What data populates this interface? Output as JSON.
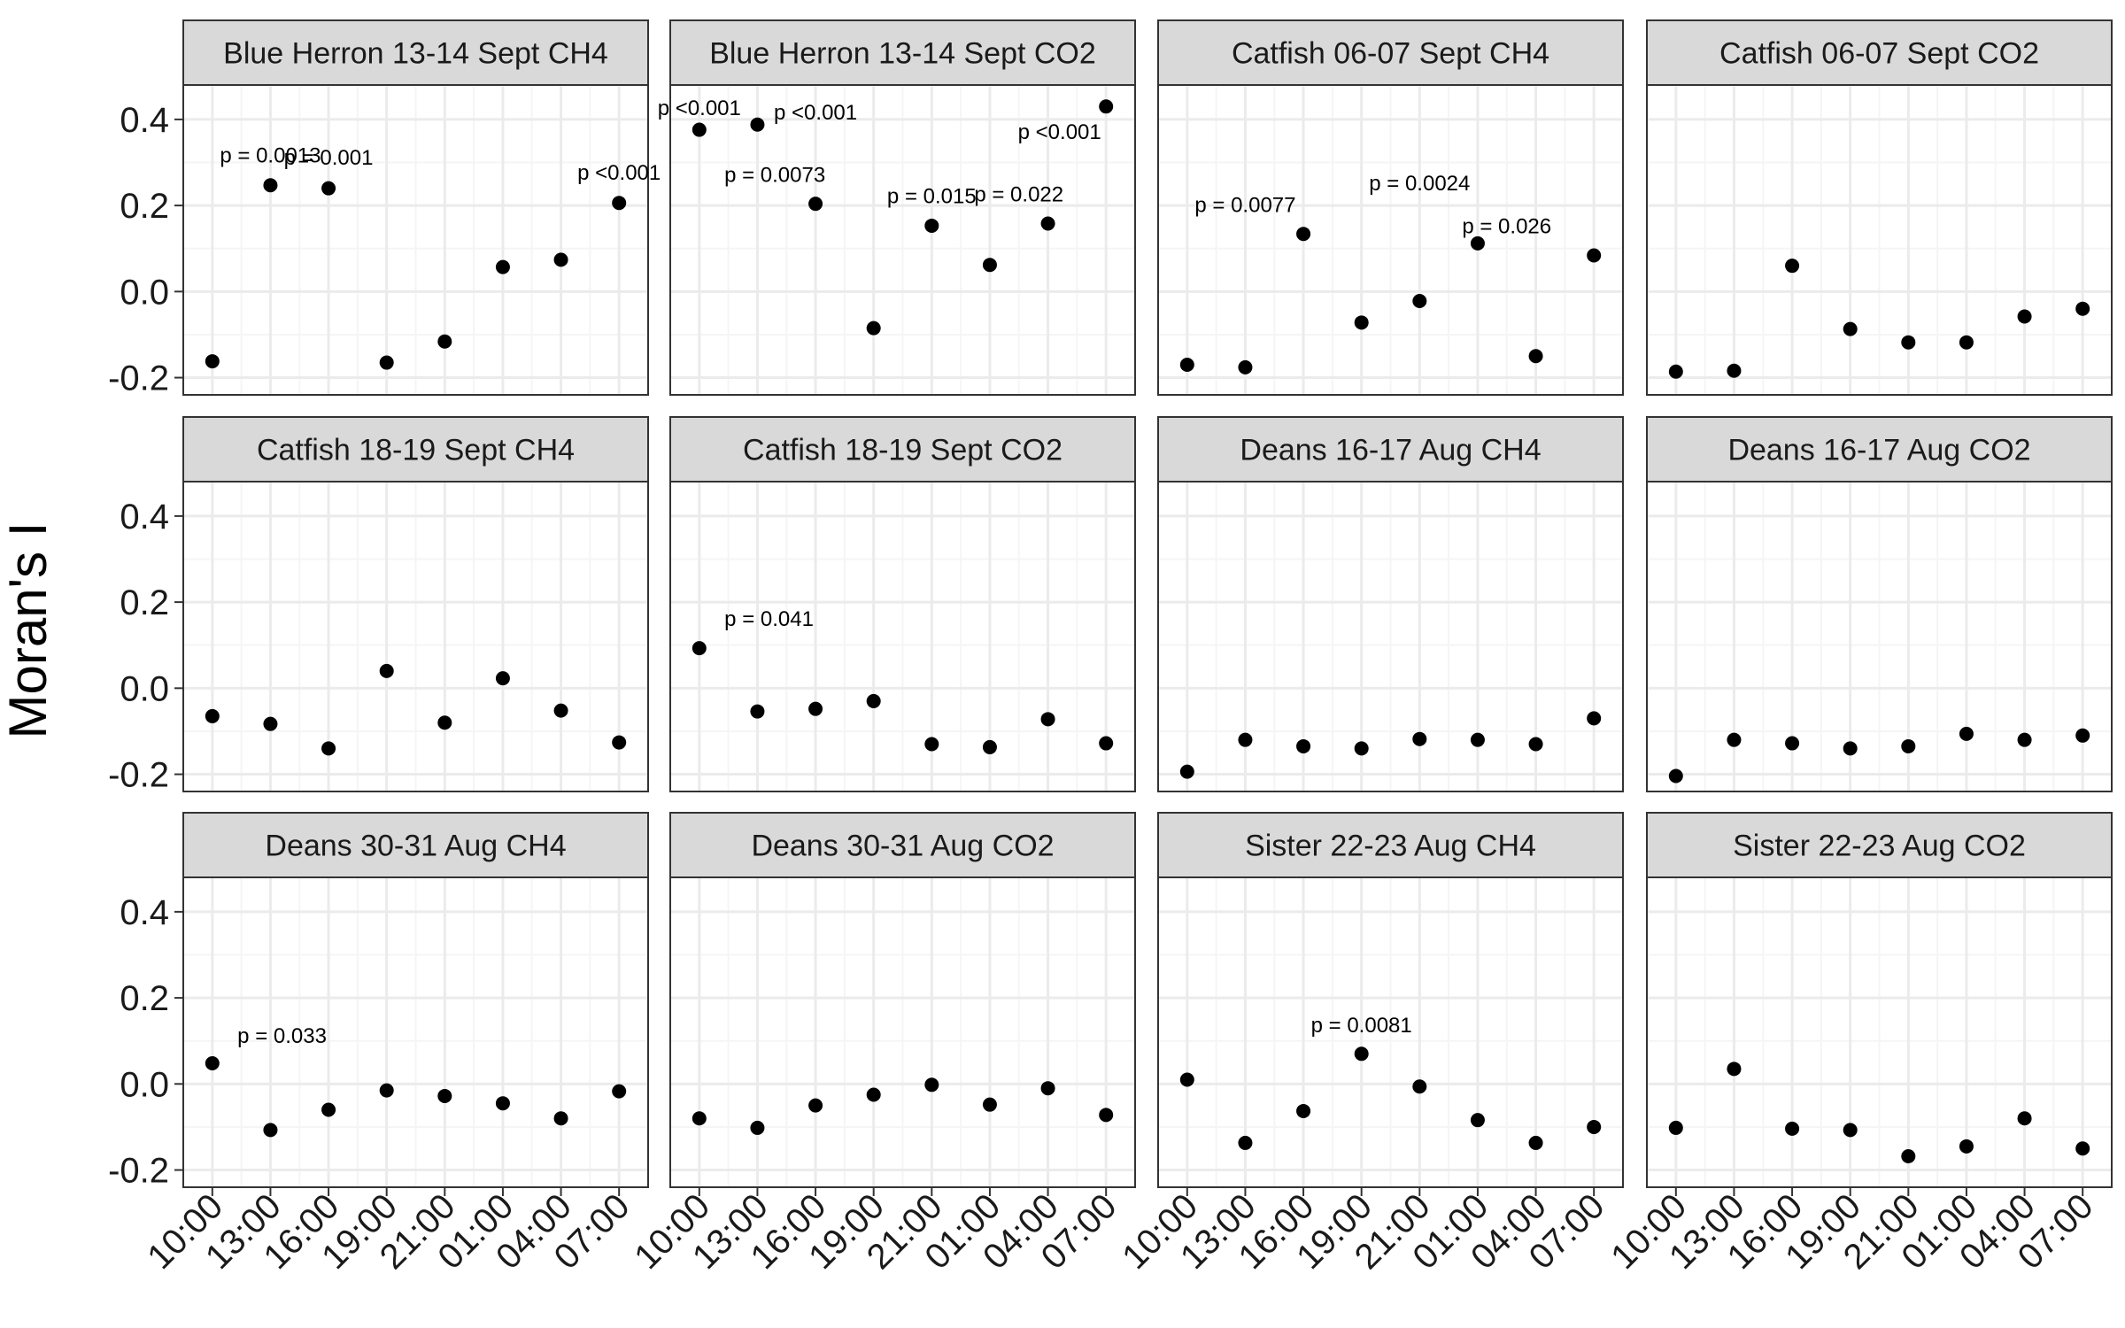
{
  "chart_data": {
    "type": "scatter",
    "ylabel": "Moran's I",
    "xlabel": "",
    "ylim": [
      -0.24,
      0.48
    ],
    "yticks": [
      -0.2,
      0.0,
      0.2,
      0.4
    ],
    "ytick_labels": [
      "-0.2",
      "0.0",
      "0.2",
      "0.4"
    ],
    "categories": [
      "10:00",
      "13:00",
      "16:00",
      "19:00",
      "21:00",
      "01:00",
      "04:00",
      "07:00"
    ],
    "grid": true,
    "colors": {
      "points": "#000000",
      "strip_fill": "#d9d9d9",
      "grid_major": "#ebebeb",
      "grid_minor": "#f5f5f5",
      "panel_border": "#333333"
    },
    "panels": [
      {
        "title": "Blue Herron 13-14 Sept CH4",
        "values": [
          -0.162,
          0.247,
          0.24,
          -0.165,
          -0.116,
          0.057,
          0.074,
          0.206
        ],
        "annotations": [
          {
            "text": "p = 0.0013",
            "x": 1,
            "y": 0.3
          },
          {
            "text": "p = 0.001",
            "x": 2,
            "y": 0.295
          },
          {
            "text": "p <0.001",
            "x": 7,
            "y": 0.26
          }
        ]
      },
      {
        "title": "Blue Herron 13-14 Sept CO2",
        "values": [
          0.376,
          0.388,
          0.204,
          -0.085,
          0.153,
          0.062,
          0.158,
          0.43
        ],
        "annotations": [
          {
            "text": "p <0.001",
            "x": 0,
            "y": 0.41
          },
          {
            "text": "p <0.001",
            "x": 2,
            "y": 0.4
          },
          {
            "text": "p = 0.0073",
            "x": 1.3,
            "y": 0.255
          },
          {
            "text": "p = 0.015",
            "x": 4,
            "y": 0.205
          },
          {
            "text": "p = 0.022",
            "x": 5.5,
            "y": 0.21
          },
          {
            "text": "p <0.001",
            "x": 6.2,
            "y": 0.355
          }
        ]
      },
      {
        "title": "Catfish 06-07 Sept CH4",
        "values": [
          -0.17,
          -0.176,
          0.134,
          -0.072,
          -0.022,
          0.112,
          -0.15,
          0.084
        ],
        "annotations": [
          {
            "text": "p = 0.0077",
            "x": 1,
            "y": 0.185
          },
          {
            "text": "p = 0.0024",
            "x": 4,
            "y": 0.235
          },
          {
            "text": "p = 0.026",
            "x": 5.5,
            "y": 0.135
          }
        ]
      },
      {
        "title": "Catfish 06-07 Sept CO2",
        "values": [
          -0.186,
          -0.184,
          0.06,
          -0.087,
          -0.118,
          -0.118,
          -0.058,
          -0.04
        ],
        "annotations": []
      },
      {
        "title": "Catfish 18-19 Sept CH4",
        "values": [
          -0.065,
          -0.083,
          -0.14,
          0.04,
          -0.08,
          0.023,
          -0.052,
          -0.126
        ],
        "annotations": []
      },
      {
        "title": "Catfish 18-19 Sept CO2",
        "values": [
          0.093,
          -0.054,
          -0.048,
          -0.03,
          -0.13,
          -0.137,
          -0.072,
          -0.128
        ],
        "annotations": [
          {
            "text": "p = 0.041",
            "x": 1.2,
            "y": 0.145
          }
        ]
      },
      {
        "title": "Deans 16-17 Aug CH4",
        "values": [
          -0.194,
          -0.12,
          -0.135,
          -0.14,
          -0.118,
          -0.12,
          -0.13,
          -0.07
        ],
        "annotations": []
      },
      {
        "title": "Deans 16-17 Aug CO2",
        "values": [
          -0.204,
          -0.12,
          -0.128,
          -0.14,
          -0.135,
          -0.106,
          -0.12,
          -0.11
        ],
        "annotations": []
      },
      {
        "title": "Deans 30-31 Aug CH4",
        "values": [
          0.048,
          -0.107,
          -0.06,
          -0.015,
          -0.028,
          -0.045,
          -0.08,
          -0.017
        ],
        "annotations": [
          {
            "text": "p = 0.033",
            "x": 1.2,
            "y": 0.095
          }
        ]
      },
      {
        "title": "Deans 30-31 Aug CO2",
        "values": [
          -0.08,
          -0.102,
          -0.05,
          -0.025,
          -0.002,
          -0.048,
          -0.01,
          -0.072
        ],
        "annotations": []
      },
      {
        "title": "Sister 22-23 Aug CH4",
        "values": [
          0.01,
          -0.137,
          -0.063,
          0.07,
          -0.006,
          -0.084,
          -0.137,
          -0.1
        ],
        "annotations": [
          {
            "text": "p = 0.0081",
            "x": 3,
            "y": 0.12
          }
        ]
      },
      {
        "title": "Sister 22-23 Aug CO2",
        "values": [
          -0.102,
          0.035,
          -0.104,
          -0.107,
          -0.168,
          -0.145,
          -0.08,
          -0.15
        ],
        "annotations": []
      }
    ]
  }
}
